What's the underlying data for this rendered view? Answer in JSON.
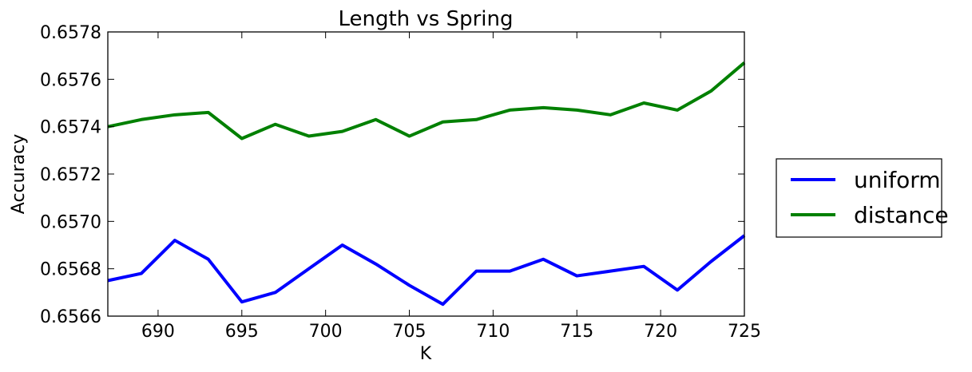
{
  "chart_data": {
    "type": "line",
    "title": "Length vs Spring",
    "xlabel": "K",
    "ylabel": "Accuracy",
    "xlim": [
      687,
      725
    ],
    "ylim": [
      0.6566,
      0.6578
    ],
    "xticks": [
      "690",
      "695",
      "700",
      "705",
      "710",
      "715",
      "720",
      "725"
    ],
    "yticks": [
      "0.6566",
      "0.6568",
      "0.6570",
      "0.6572",
      "0.6574",
      "0.6576",
      "0.6578"
    ],
    "grid": false,
    "legend_position": "outside-right",
    "x": [
      687,
      689,
      691,
      693,
      695,
      697,
      699,
      701,
      703,
      705,
      707,
      709,
      711,
      713,
      715,
      717,
      719,
      721,
      723,
      725
    ],
    "series": [
      {
        "name": "uniform",
        "color": "#0000ff",
        "values": [
          0.65675,
          0.65678,
          0.65692,
          0.65684,
          0.65666,
          0.6567,
          0.6568,
          0.6569,
          0.65682,
          0.65673,
          0.65665,
          0.65679,
          0.65679,
          0.65684,
          0.65677,
          0.65679,
          0.65681,
          0.65671,
          0.65683,
          0.65694
        ]
      },
      {
        "name": "distance",
        "color": "#008000",
        "values": [
          0.6574,
          0.65743,
          0.65745,
          0.65746,
          0.65735,
          0.65741,
          0.65736,
          0.65738,
          0.65743,
          0.65736,
          0.65742,
          0.65743,
          0.65747,
          0.65748,
          0.65747,
          0.65745,
          0.6575,
          0.65747,
          0.65755,
          0.65767
        ]
      }
    ]
  }
}
